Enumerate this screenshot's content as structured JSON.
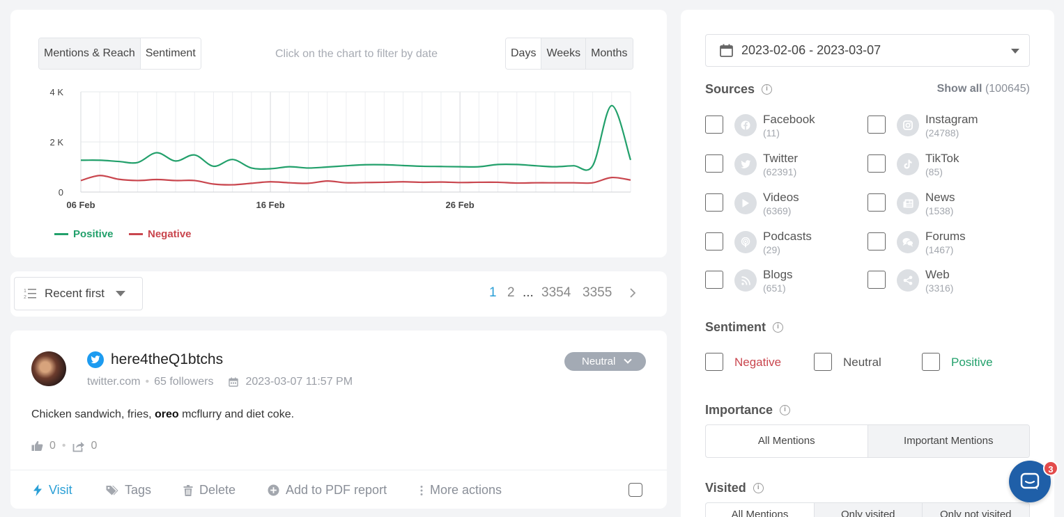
{
  "chart_panel": {
    "modes": [
      "Mentions & Reach",
      "Sentiment"
    ],
    "hint": "Click on the chart to filter by date",
    "ranges": [
      "Days",
      "Weeks",
      "Months"
    ]
  },
  "chart_data": {
    "type": "line",
    "x": [
      "06 Feb",
      "07 Feb",
      "08 Feb",
      "09 Feb",
      "10 Feb",
      "11 Feb",
      "12 Feb",
      "13 Feb",
      "14 Feb",
      "15 Feb",
      "16 Feb",
      "17 Feb",
      "18 Feb",
      "19 Feb",
      "20 Feb",
      "21 Feb",
      "22 Feb",
      "23 Feb",
      "24 Feb",
      "25 Feb",
      "26 Feb",
      "27 Feb",
      "28 Feb",
      "01 Mar",
      "02 Mar",
      "03 Mar",
      "04 Mar",
      "05 Mar",
      "06 Mar",
      "07 Mar"
    ],
    "x_ticks": [
      "06 Feb",
      "16 Feb",
      "26 Feb"
    ],
    "y_ticks": [
      "0",
      "2 K",
      "4 K"
    ],
    "ylim": [
      0,
      4000
    ],
    "series": [
      {
        "name": "Positive",
        "color": "#22a06b",
        "values": [
          1270,
          1270,
          1220,
          1180,
          1570,
          1240,
          1480,
          1030,
          1300,
          960,
          930,
          1010,
          960,
          1000,
          1050,
          1090,
          1090,
          1060,
          1030,
          1020,
          1010,
          1010,
          1100,
          1100,
          1050,
          1010,
          1050,
          1050,
          3450,
          1280
        ]
      },
      {
        "name": "Negative",
        "color": "#c9464e",
        "values": [
          460,
          660,
          510,
          460,
          500,
          460,
          460,
          320,
          290,
          350,
          410,
          370,
          350,
          440,
          370,
          380,
          390,
          410,
          390,
          400,
          380,
          390,
          390,
          360,
          370,
          370,
          370,
          370,
          580,
          480
        ]
      }
    ],
    "grid": true,
    "legend": "bottom-left"
  },
  "sort_bar": {
    "sort_label": "Recent first",
    "pages": [
      "1",
      "2",
      "...",
      "3354",
      "3355"
    ]
  },
  "mention": {
    "author": "here4theQ1btchs",
    "source": "twitter.com",
    "followers": "65 followers",
    "datetime": "2023-03-07 11:57 PM",
    "sentiment": "Neutral",
    "text_before": "Chicken sandwich, fries, ",
    "text_bold": "oreo",
    "text_after": " mcflurry and diet coke.",
    "likes": "0",
    "shares": "0",
    "actions": {
      "visit": "Visit",
      "tags": "Tags",
      "delete": "Delete",
      "pdf": "Add to PDF report",
      "more": "More actions"
    }
  },
  "filters": {
    "date_range": "2023-02-06 - 2023-03-07",
    "sources_title": "Sources",
    "show_all": "Show all",
    "show_all_count": "(100645)",
    "sources": [
      {
        "name": "Facebook",
        "count": "(11)"
      },
      {
        "name": "Instagram",
        "count": "(24788)"
      },
      {
        "name": "Twitter",
        "count": "(62391)"
      },
      {
        "name": "TikTok",
        "count": "(85)"
      },
      {
        "name": "Videos",
        "count": "(6369)"
      },
      {
        "name": "News",
        "count": "(1538)"
      },
      {
        "name": "Podcasts",
        "count": "(29)"
      },
      {
        "name": "Forums",
        "count": "(1467)"
      },
      {
        "name": "Blogs",
        "count": "(651)"
      },
      {
        "name": "Web",
        "count": "(3316)"
      }
    ],
    "sentiment_title": "Sentiment",
    "sentiment_options": [
      "Negative",
      "Neutral",
      "Positive"
    ],
    "importance_title": "Importance",
    "importance_options": [
      "All Mentions",
      "Important Mentions"
    ],
    "visited_title": "Visited",
    "visited_options": [
      "All Mentions",
      "Only visited",
      "Only not visited"
    ]
  },
  "chat": {
    "badge": "3"
  }
}
